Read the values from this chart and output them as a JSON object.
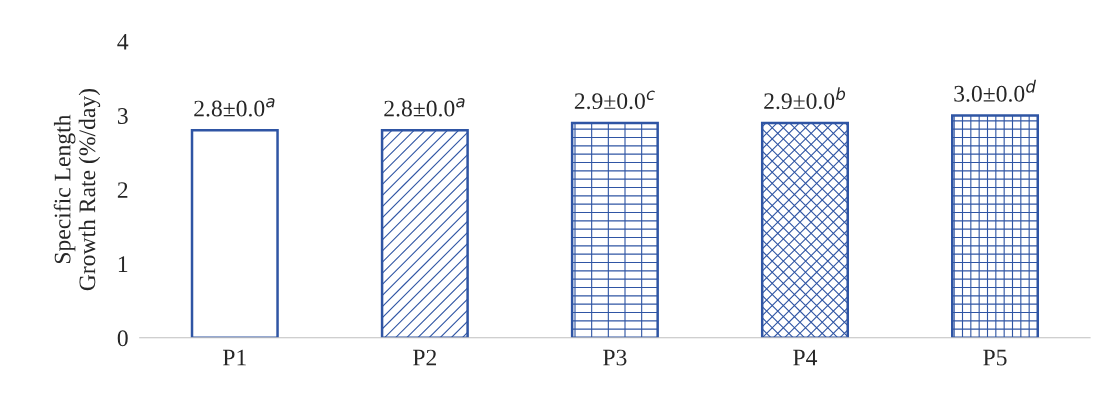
{
  "chart_data": {
    "type": "bar",
    "ylabel": "Specific Length\nGrowth Rate (%/day)",
    "categories": [
      "P1",
      "P2",
      "P3",
      "P4",
      "P5"
    ],
    "values": [
      2.8,
      2.8,
      2.9,
      2.9,
      3.0
    ],
    "value_labels": [
      "2.8±0.0$^{a}$",
      "2.8±0.0$^{a}$",
      "2.9±0.0$^{c}$",
      "2.9±0.0$^{b}$",
      "3.0±0.0$^{d}$"
    ],
    "colors": [
      "#2f55a4",
      "#2f55a4",
      "#2f55a4",
      "#2f55a4",
      "#2f55a4"
    ],
    "ylim": [
      0,
      4
    ],
    "yticks": [
      0,
      1,
      2,
      3,
      4
    ],
    "grid": false,
    "legend": false
  }
}
